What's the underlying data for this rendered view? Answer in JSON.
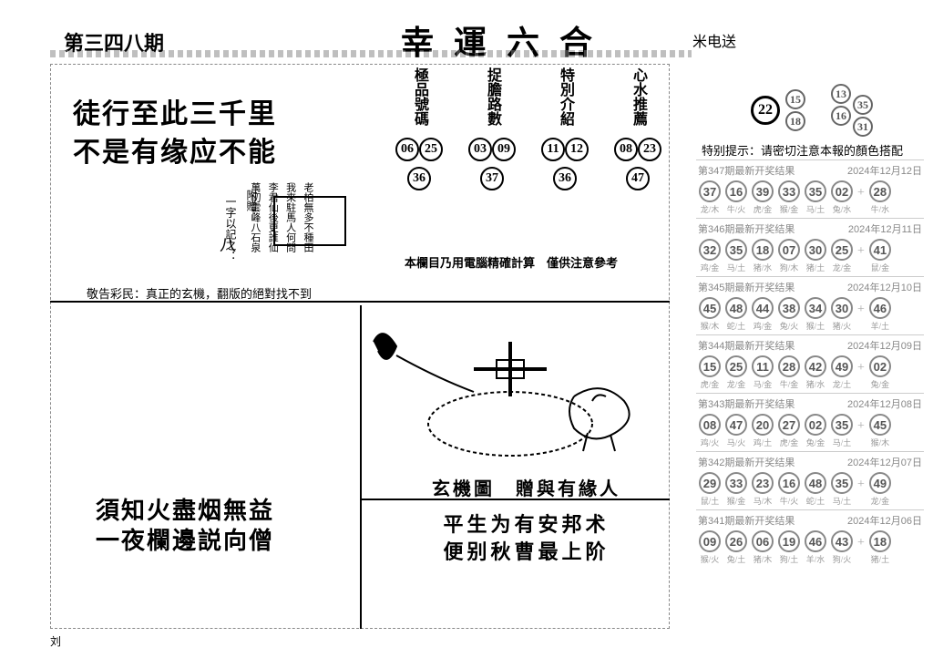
{
  "header": {
    "issue": "第三四八期",
    "title": "幸運六合",
    "suffix": "米电送"
  },
  "couplet": {
    "line1": "徒行至此三千里",
    "line2": "不是有缘应不能"
  },
  "small_cols": [
    "老柏無多不種田",
    "我來駐馬人何問",
    "李君仙後更誰仙",
    "萬仞雲峰八石泉"
  ],
  "attach": {
    "label": "附贈：",
    "char_label": "一字以記之：",
    "big_char": "八"
  },
  "warning": "敬告彩民：真正的玄機，翻版的絕對找不到",
  "num_columns": [
    {
      "header": "極品號碼",
      "nums": [
        "06",
        "25",
        "36"
      ]
    },
    {
      "header": "捉膽路數",
      "nums": [
        "03",
        "09",
        "37"
      ]
    },
    {
      "header": "特別介紹",
      "nums": [
        "11",
        "12",
        "36"
      ]
    },
    {
      "header": "心水推薦",
      "nums": [
        "08",
        "23",
        "47"
      ]
    }
  ],
  "note": "本欄目乃用電腦精確計算　僅供注意參考",
  "bottom_left": {
    "line1": "須知火盡烟無益",
    "line2": "一夜欄邊説向僧"
  },
  "xjt": {
    "title": "玄機圖　贈與有緣人",
    "line1": "平生为有安邦术",
    "line2": "便别秋曹最上阶"
  },
  "feature_balls": {
    "big": "22",
    "small": [
      "15",
      "18",
      "13",
      "16",
      "35",
      "31"
    ]
  },
  "tip": "特别提示：请密切注意本報的顏色搭配",
  "results": [
    {
      "title": "第347期最新开奖结果",
      "date": "2024年12月12日",
      "balls": [
        [
          "37",
          "龙/木"
        ],
        [
          "16",
          "牛/火"
        ],
        [
          "39",
          "虎/金"
        ],
        [
          "33",
          "猴/金"
        ],
        [
          "35",
          "马/土"
        ],
        [
          "02",
          "兔/水"
        ]
      ],
      "extra": [
        "28",
        "牛/水"
      ]
    },
    {
      "title": "第346期最新开奖结果",
      "date": "2024年12月11日",
      "balls": [
        [
          "32",
          "鸡/金"
        ],
        [
          "35",
          "马/土"
        ],
        [
          "18",
          "猪/水"
        ],
        [
          "07",
          "狗/木"
        ],
        [
          "30",
          "猪/土"
        ],
        [
          "25",
          "龙/金"
        ]
      ],
      "extra": [
        "41",
        "鼠/金"
      ]
    },
    {
      "title": "第345期最新开奖结果",
      "date": "2024年12月10日",
      "balls": [
        [
          "45",
          "猴/木"
        ],
        [
          "48",
          "蛇/土"
        ],
        [
          "44",
          "鸡/金"
        ],
        [
          "38",
          "兔/火"
        ],
        [
          "34",
          "猴/土"
        ],
        [
          "30",
          "猪/火"
        ]
      ],
      "extra": [
        "46",
        "羊/土"
      ]
    },
    {
      "title": "第344期最新开奖结果",
      "date": "2024年12月09日",
      "balls": [
        [
          "15",
          "虎/金"
        ],
        [
          "25",
          "龙/金"
        ],
        [
          "11",
          "马/金"
        ],
        [
          "28",
          "牛/金"
        ],
        [
          "42",
          "猪/水"
        ],
        [
          "49",
          "龙/土"
        ]
      ],
      "extra": [
        "02",
        "兔/金"
      ]
    },
    {
      "title": "第343期最新开奖结果",
      "date": "2024年12月08日",
      "balls": [
        [
          "08",
          "鸡/火"
        ],
        [
          "47",
          "马/火"
        ],
        [
          "20",
          "鸡/土"
        ],
        [
          "27",
          "虎/金"
        ],
        [
          "02",
          "兔/金"
        ],
        [
          "35",
          "马/土"
        ]
      ],
      "extra": [
        "45",
        "猴/木"
      ]
    },
    {
      "title": "第342期最新开奖结果",
      "date": "2024年12月07日",
      "balls": [
        [
          "29",
          "鼠/土"
        ],
        [
          "33",
          "猴/金"
        ],
        [
          "23",
          "马/木"
        ],
        [
          "16",
          "牛/火"
        ],
        [
          "48",
          "蛇/土"
        ],
        [
          "35",
          "马/土"
        ]
      ],
      "extra": [
        "49",
        "龙/金"
      ]
    },
    {
      "title": "第341期最新开奖结果",
      "date": "2024年12月06日",
      "balls": [
        [
          "09",
          "猴/火"
        ],
        [
          "26",
          "兔/土"
        ],
        [
          "06",
          "猪/木"
        ],
        [
          "19",
          "狗/土"
        ],
        [
          "46",
          "羊/水"
        ],
        [
          "43",
          "狗/火"
        ]
      ],
      "extra": [
        "18",
        "猪/土"
      ]
    }
  ],
  "mark": "刘"
}
